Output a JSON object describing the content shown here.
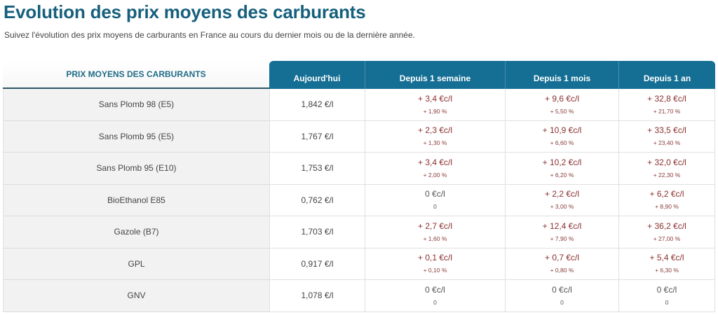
{
  "header": {
    "title": "Evolution des prix moyens des carburants",
    "subtitle": "Suivez l'évolution des prix moyens de carburants en France au cours du dernier mois ou de la dernière année."
  },
  "colors": {
    "title": "#16607d",
    "header_bg": "#156f94",
    "increase": "#8b2f2f",
    "neutral": "#555555",
    "row_label_bg": "#f2f2f2"
  },
  "table": {
    "label_header": "PRIX MOYENS DES CARBURANTS",
    "columns": [
      "Aujourd'hui",
      "Depuis 1 semaine",
      "Depuis 1 mois",
      "Depuis 1 an"
    ],
    "rows": [
      {
        "fuel": "Sans Plomb 98 (E5)",
        "price": "1,842 €/l",
        "week": {
          "value": "+ 3,4 €c/l",
          "pct": "+ 1,90 %",
          "trend": "up"
        },
        "month": {
          "value": "+ 9,6 €c/l",
          "pct": "+ 5,50 %",
          "trend": "up"
        },
        "year": {
          "value": "+ 32,8 €c/l",
          "pct": "+ 21,70 %",
          "trend": "up"
        }
      },
      {
        "fuel": "Sans Plomb 95 (E5)",
        "price": "1,767 €/l",
        "week": {
          "value": "+ 2,3 €c/l",
          "pct": "+ 1,30 %",
          "trend": "up"
        },
        "month": {
          "value": "+ 10,9 €c/l",
          "pct": "+ 6,60 %",
          "trend": "up"
        },
        "year": {
          "value": "+ 33,5 €c/l",
          "pct": "+ 23,40 %",
          "trend": "up"
        }
      },
      {
        "fuel": "Sans Plomb 95 (E10)",
        "price": "1,753 €/l",
        "week": {
          "value": "+ 3,4 €c/l",
          "pct": "+ 2,00 %",
          "trend": "up"
        },
        "month": {
          "value": "+ 10,2 €c/l",
          "pct": "+ 6,20 %",
          "trend": "up"
        },
        "year": {
          "value": "+ 32,0 €c/l",
          "pct": "+ 22,30 %",
          "trend": "up"
        }
      },
      {
        "fuel": "BioEthanol E85",
        "price": "0,762 €/l",
        "week": {
          "value": "0 €c/l",
          "pct": "0",
          "trend": "zero"
        },
        "month": {
          "value": "+ 2,2 €c/l",
          "pct": "+ 3,00 %",
          "trend": "up"
        },
        "year": {
          "value": "+ 6,2 €c/l",
          "pct": "+ 8,90 %",
          "trend": "up"
        }
      },
      {
        "fuel": "Gazole (B7)",
        "price": "1,703 €/l",
        "week": {
          "value": "+ 2,7 €c/l",
          "pct": "+ 1,60 %",
          "trend": "up"
        },
        "month": {
          "value": "+ 12,4 €c/l",
          "pct": "+ 7,90 %",
          "trend": "up"
        },
        "year": {
          "value": "+ 36,2 €c/l",
          "pct": "+ 27,00 %",
          "trend": "up"
        }
      },
      {
        "fuel": "GPL",
        "price": "0,917 €/l",
        "week": {
          "value": "+ 0,1 €c/l",
          "pct": "+ 0,10 %",
          "trend": "up"
        },
        "month": {
          "value": "+ 0,7 €c/l",
          "pct": "+ 0,80 %",
          "trend": "up"
        },
        "year": {
          "value": "+ 5,4 €c/l",
          "pct": "+ 6,30 %",
          "trend": "up"
        }
      },
      {
        "fuel": "GNV",
        "price": "1,078 €/l",
        "week": {
          "value": "0 €c/l",
          "pct": "0",
          "trend": "zero"
        },
        "month": {
          "value": "0 €c/l",
          "pct": "0",
          "trend": "zero"
        },
        "year": {
          "value": "0 €c/l",
          "pct": "0",
          "trend": "zero"
        }
      }
    ]
  }
}
